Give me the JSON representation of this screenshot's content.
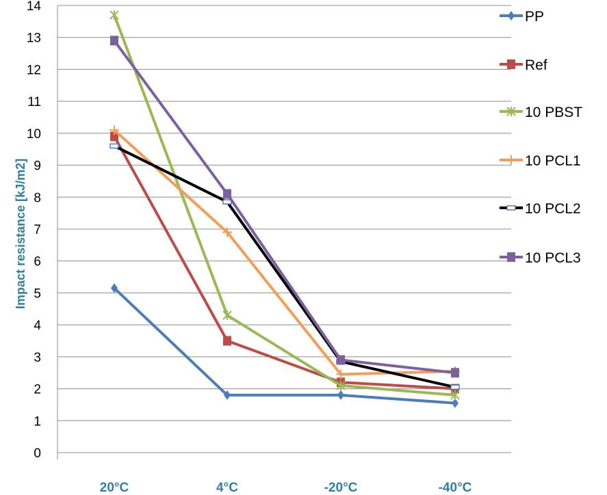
{
  "chart_data": {
    "type": "line",
    "title": "",
    "xlabel": "",
    "ylabel": "Impact resistance [kJ/m2]",
    "categories": [
      "20°C",
      "4°C",
      "-20°C",
      "-40°C"
    ],
    "ylim": [
      0,
      14
    ],
    "yticks": [
      0,
      1,
      2,
      3,
      4,
      5,
      6,
      7,
      8,
      9,
      10,
      11,
      12,
      13,
      14
    ],
    "grid": true,
    "legend_position": "right",
    "series": [
      {
        "name": "PP",
        "color": "#4a7ebb",
        "marker": "diamond",
        "values": [
          5.15,
          1.8,
          1.8,
          1.55
        ]
      },
      {
        "name": "Ref",
        "color": "#be4b48",
        "marker": "square",
        "values": [
          9.9,
          3.5,
          2.2,
          2.0
        ]
      },
      {
        "name": "10 PBST",
        "color": "#98b954",
        "marker": "star",
        "values": [
          13.7,
          4.3,
          2.1,
          1.8
        ]
      },
      {
        "name": "10 PCL1",
        "color": "#f59d56",
        "marker": "plus",
        "values": [
          10.1,
          6.9,
          2.45,
          2.55
        ]
      },
      {
        "name": "10 PCL2",
        "color": "#000000",
        "marker": "dash",
        "values": [
          9.6,
          7.85,
          2.85,
          2.05
        ]
      },
      {
        "name": "10 PCL3",
        "color": "#7d60a0",
        "marker": "square",
        "values": [
          12.9,
          8.1,
          2.9,
          2.5
        ]
      }
    ]
  }
}
